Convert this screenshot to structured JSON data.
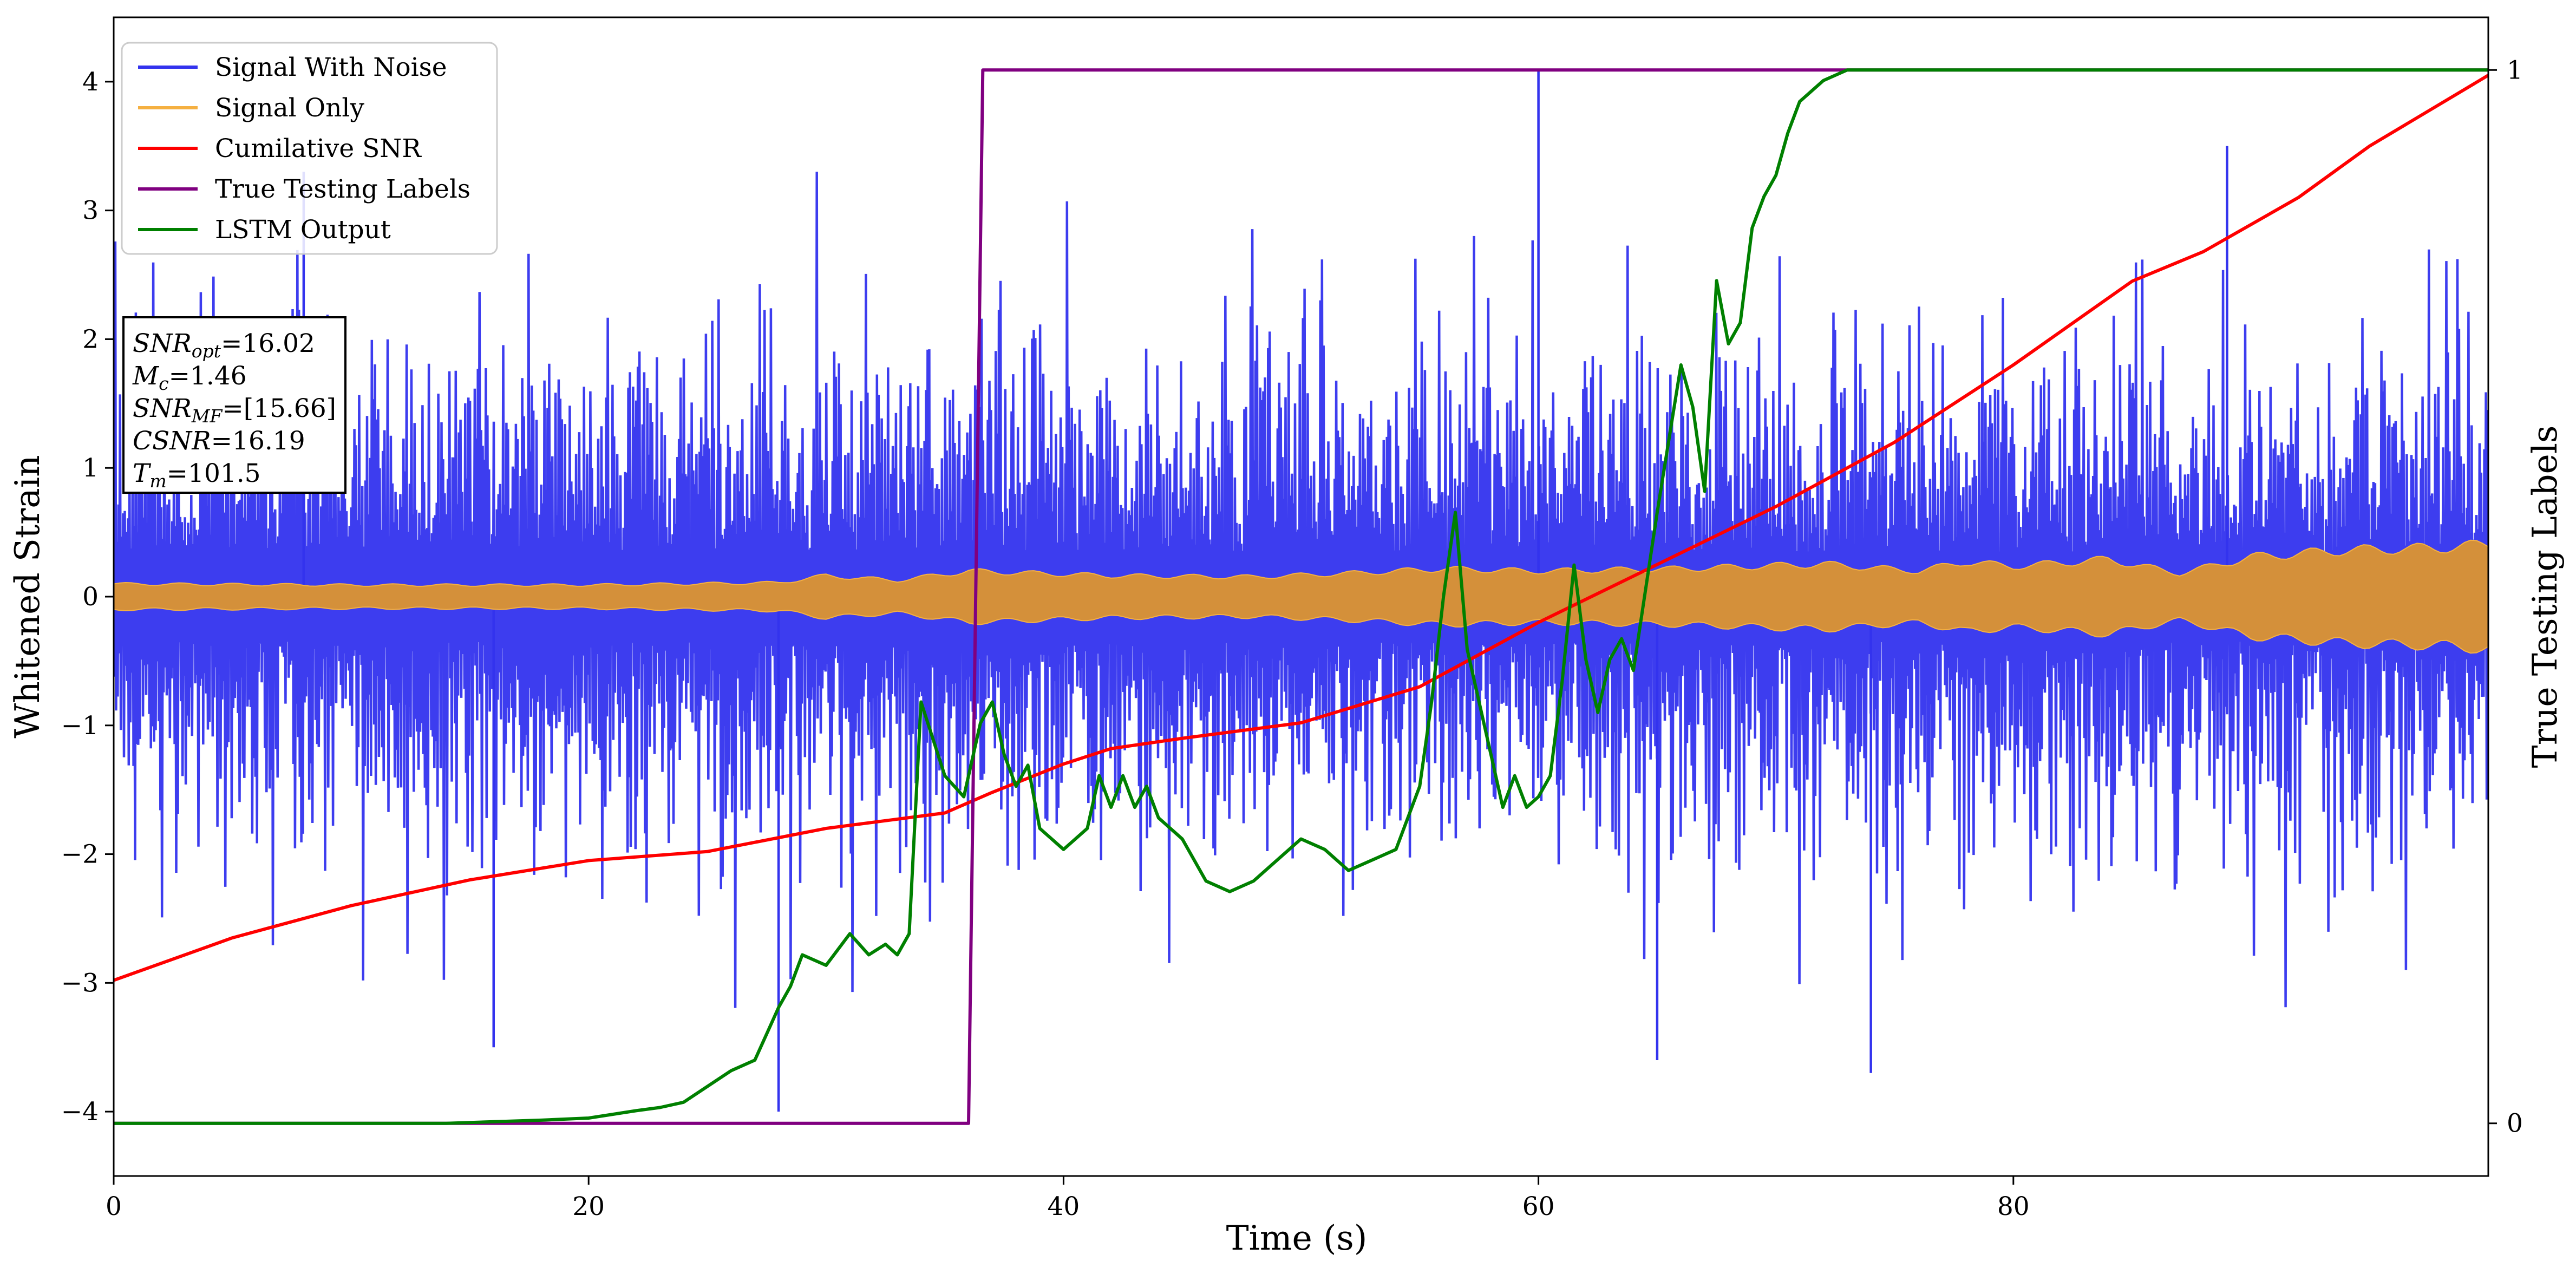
{
  "chart_data": {
    "type": "line",
    "title": "",
    "xlabel": "Time (s)",
    "ylabel": "Whitened Strain",
    "y2label": "True Testing Labels",
    "xlim": [
      0,
      100
    ],
    "ylim": [
      -4.5,
      4.5
    ],
    "y2lim": [
      -0.05,
      1.05
    ],
    "x_ticks": [
      0,
      20,
      40,
      60,
      80
    ],
    "y_ticks": [
      -4,
      -3,
      -2,
      -1,
      0,
      1,
      2,
      3,
      4
    ],
    "y2_ticks": [
      0,
      1
    ],
    "grid": false,
    "legend_position": "top-left",
    "legend": [
      {
        "label": "Signal With Noise",
        "color": "#3333ee"
      },
      {
        "label": "Signal Only",
        "color": "#f5b041"
      },
      {
        "label": "Cumilative SNR",
        "color": "#ff0000"
      },
      {
        "label": "True Testing Labels",
        "color": "#800080"
      },
      {
        "label": "LSTM Output",
        "color": "#008000"
      }
    ],
    "info_box": [
      {
        "var": "SNR",
        "sub": "opt",
        "value": "=16.02"
      },
      {
        "var": "M",
        "sub": "c",
        "value": "=1.46"
      },
      {
        "var": "SNR",
        "sub": "MF",
        "value": "=[15.66]"
      },
      {
        "var": "CSNR",
        "sub": "",
        "value": "=16.19"
      },
      {
        "var": "T",
        "sub": "m",
        "value": "=101.5"
      }
    ],
    "series": [
      {
        "name": "Signal With Noise",
        "color": "#3333ee",
        "axis": "left",
        "description": "dense noisy strain, mostly within about -2.5 to 2.5 with spikes",
        "samples": 3000,
        "spikes": [
          {
            "x": 60,
            "y": 4.1
          },
          {
            "x": 28,
            "y": -4.0
          },
          {
            "x": 16,
            "y": -3.5
          },
          {
            "x": 74,
            "y": -3.7
          },
          {
            "x": 65,
            "y": -3.6
          },
          {
            "x": 89,
            "y": 3.5
          },
          {
            "x": 8,
            "y": 3.3
          }
        ]
      },
      {
        "name": "Signal Only",
        "color": "#f5b041",
        "axis": "left",
        "envelope": {
          "x": [
            0,
            10,
            20,
            28,
            30,
            33,
            36,
            42,
            48,
            52,
            56,
            60,
            66,
            72,
            76,
            78,
            80,
            84,
            87,
            90,
            94,
            98,
            100
          ],
          "amp": [
            0.11,
            0.1,
            0.1,
            0.12,
            0.18,
            0.14,
            0.22,
            0.18,
            0.17,
            0.2,
            0.24,
            0.22,
            0.24,
            0.28,
            0.22,
            0.3,
            0.26,
            0.32,
            0.2,
            0.34,
            0.4,
            0.42,
            0.45
          ]
        }
      },
      {
        "name": "Cumilative SNR",
        "color": "#ff0000",
        "axis": "left",
        "x": [
          0,
          5,
          10,
          15,
          20,
          25,
          30,
          35,
          37,
          40,
          42,
          45,
          50,
          55,
          60,
          65,
          70,
          75,
          80,
          85,
          88,
          92,
          95,
          100
        ],
        "y": [
          -2.98,
          -2.65,
          -2.4,
          -2.2,
          -2.05,
          -1.98,
          -1.8,
          -1.68,
          -1.52,
          -1.3,
          -1.18,
          -1.1,
          -0.98,
          -0.7,
          -0.2,
          0.25,
          0.7,
          1.2,
          1.8,
          2.45,
          2.68,
          3.1,
          3.5,
          4.05
        ]
      },
      {
        "name": "True Testing Labels",
        "color": "#800080",
        "axis": "right",
        "x": [
          0,
          36.0,
          36.6,
          100
        ],
        "y": [
          0,
          0,
          1,
          1
        ]
      },
      {
        "name": "LSTM Output",
        "color": "#008000",
        "axis": "right",
        "x": [
          0,
          14,
          18,
          20,
          22,
          23,
          24,
          25,
          26,
          27,
          27.5,
          28,
          28.5,
          29,
          30,
          31,
          31.8,
          32.5,
          33,
          33.5,
          34,
          35,
          35.8,
          36.5,
          37,
          37.5,
          38,
          38.5,
          39,
          40,
          41,
          41.5,
          42,
          42.5,
          43,
          43.5,
          44,
          45,
          46,
          47,
          48,
          49,
          50,
          51,
          52,
          53,
          54,
          55,
          55.5,
          56,
          56.5,
          57,
          58,
          58.5,
          59,
          59.5,
          60,
          60.5,
          61,
          61.5,
          62,
          62.5,
          63,
          63.5,
          64,
          65,
          66,
          66.5,
          67,
          67.5,
          68,
          68.5,
          69,
          69.5,
          70,
          70.5,
          71,
          72,
          73,
          74,
          75,
          100
        ],
        "y": [
          0,
          0,
          0.003,
          0.005,
          0.012,
          0.015,
          0.02,
          0.035,
          0.05,
          0.06,
          0.085,
          0.11,
          0.13,
          0.16,
          0.15,
          0.18,
          0.16,
          0.17,
          0.16,
          0.18,
          0.4,
          0.33,
          0.31,
          0.38,
          0.4,
          0.35,
          0.32,
          0.34,
          0.28,
          0.26,
          0.28,
          0.33,
          0.3,
          0.33,
          0.3,
          0.32,
          0.29,
          0.27,
          0.23,
          0.22,
          0.23,
          0.25,
          0.27,
          0.26,
          0.24,
          0.25,
          0.26,
          0.32,
          0.4,
          0.5,
          0.58,
          0.45,
          0.35,
          0.3,
          0.33,
          0.3,
          0.31,
          0.33,
          0.42,
          0.53,
          0.44,
          0.39,
          0.44,
          0.46,
          0.43,
          0.58,
          0.72,
          0.68,
          0.6,
          0.8,
          0.74,
          0.76,
          0.85,
          0.88,
          0.9,
          0.94,
          0.97,
          0.99,
          1.0,
          1.0,
          1.0,
          1.0
        ]
      }
    ]
  }
}
